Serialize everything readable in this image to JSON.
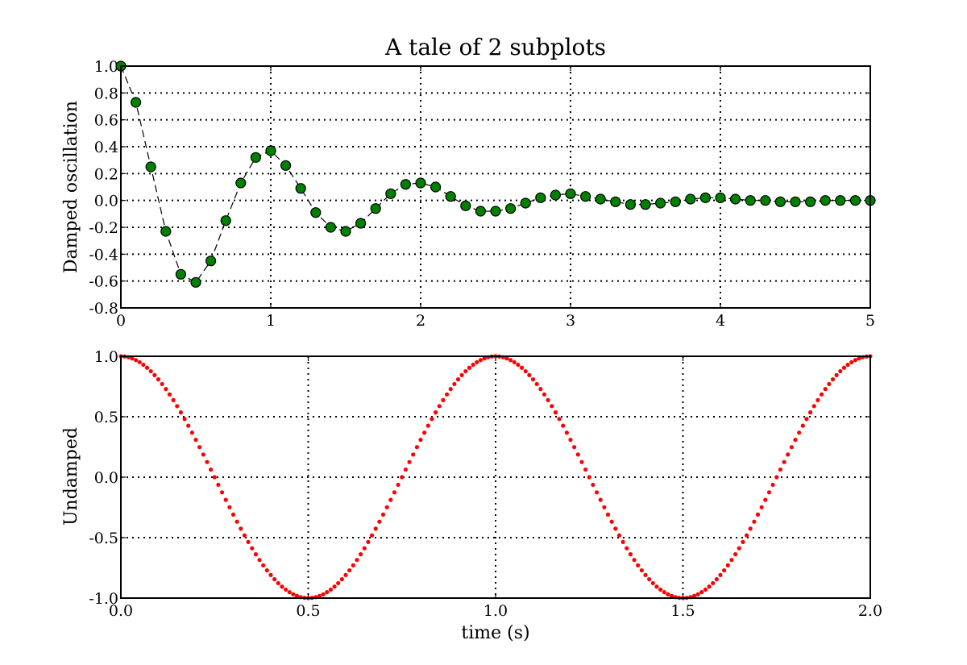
{
  "figure": {
    "title": "A tale of 2 subplots"
  },
  "chart_data": [
    {
      "type": "line",
      "title": "A tale of 2 subplots",
      "xlabel": "",
      "ylabel": "Damped oscillation",
      "xlim": [
        0,
        5
      ],
      "ylim": [
        -0.8,
        1.0
      ],
      "x_ticks": [
        0,
        1,
        2,
        3,
        4,
        5
      ],
      "x_tick_labels": [
        "0",
        "1",
        "2",
        "3",
        "4",
        "5"
      ],
      "y_ticks": [
        -0.8,
        -0.6,
        -0.4,
        -0.2,
        0.0,
        0.2,
        0.4,
        0.6,
        0.8,
        1.0
      ],
      "y_tick_labels": [
        "-0.8",
        "-0.6",
        "-0.4",
        "-0.2",
        "0.0",
        "0.2",
        "0.4",
        "0.6",
        "0.8",
        "1.0"
      ],
      "grid": true,
      "series": [
        {
          "style": "circle markers with dashed black line",
          "marker_color": "#008000",
          "line_color": "#000000",
          "x": [
            0.0,
            0.1,
            0.2,
            0.3,
            0.4,
            0.5,
            0.6,
            0.7,
            0.8,
            0.9,
            1.0,
            1.1,
            1.2,
            1.3,
            1.4,
            1.5,
            1.6,
            1.7,
            1.8,
            1.9,
            2.0,
            2.1,
            2.2,
            2.3,
            2.4,
            2.5,
            2.6,
            2.7,
            2.8,
            2.9,
            3.0,
            3.1,
            3.2,
            3.3,
            3.4,
            3.5,
            3.6,
            3.7,
            3.8,
            3.9,
            4.0,
            4.1,
            4.2,
            4.3,
            4.4,
            4.5,
            4.6,
            4.7,
            4.8,
            4.9,
            5.0
          ],
          "y": [
            1.0,
            0.73,
            0.25,
            -0.23,
            -0.55,
            -0.61,
            -0.45,
            -0.15,
            0.13,
            0.32,
            0.37,
            0.26,
            0.09,
            -0.09,
            -0.2,
            -0.23,
            -0.17,
            -0.06,
            0.05,
            0.12,
            0.13,
            0.1,
            0.03,
            -0.04,
            -0.08,
            -0.08,
            -0.06,
            -0.02,
            0.02,
            0.04,
            0.05,
            0.03,
            0.01,
            -0.01,
            -0.03,
            -0.03,
            -0.02,
            -0.01,
            0.01,
            0.02,
            0.02,
            0.01,
            0.0,
            0.0,
            -0.01,
            -0.01,
            -0.01,
            0.0,
            0.0,
            0.0,
            0.0
          ]
        }
      ]
    },
    {
      "type": "scatter",
      "xlabel": "time (s)",
      "ylabel": "Undamped",
      "xlim": [
        0.0,
        2.0
      ],
      "ylim": [
        -1.0,
        1.0
      ],
      "x_ticks": [
        0.0,
        0.5,
        1.0,
        1.5,
        2.0
      ],
      "x_tick_labels": [
        "0.0",
        "0.5",
        "1.0",
        "1.5",
        "2.0"
      ],
      "y_ticks": [
        -1.0,
        -0.5,
        0.0,
        0.5,
        1.0
      ],
      "y_tick_labels": [
        "-1.0",
        "-0.5",
        "0.0",
        "0.5",
        "1.0"
      ],
      "grid": true,
      "series": [
        {
          "style": "small point markers",
          "marker_color": "#ff0000",
          "function": "cos(2*pi*t)",
          "x_start": 0.0,
          "x_end": 2.0,
          "x_step": 0.01
        }
      ]
    }
  ]
}
